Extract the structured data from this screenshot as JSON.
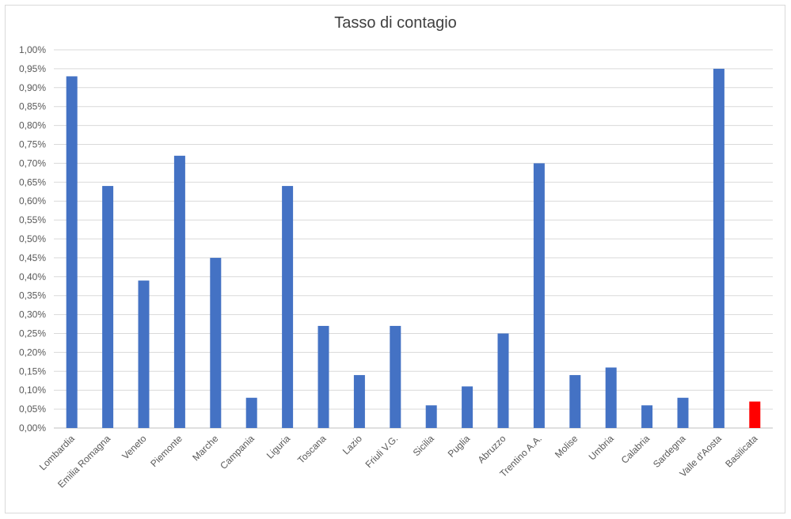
{
  "chart_data": {
    "type": "bar",
    "title": "Tasso di contagio",
    "xlabel": "",
    "ylabel": "",
    "ylim": [
      0,
      1.0
    ],
    "y_tick_step": 0.05,
    "y_tick_format": "percent_comma_2dp",
    "grid": true,
    "legend": "none",
    "categories": [
      "Lombardia",
      "Emilia Romagna",
      "Veneto",
      "Piemonte",
      "Marche",
      "Campania",
      "Liguria",
      "Toscana",
      "Lazio",
      "Friuli V.G.",
      "Sicilia",
      "Puglia",
      "Abruzzo",
      "Trentino A.A.",
      "Molise",
      "Umbria",
      "Calabria",
      "Sardegna",
      "Valle d'Aosta",
      "Basilicata"
    ],
    "values": [
      0.93,
      0.64,
      0.39,
      0.72,
      0.45,
      0.08,
      0.64,
      0.27,
      0.14,
      0.27,
      0.06,
      0.11,
      0.25,
      0.7,
      0.14,
      0.16,
      0.06,
      0.08,
      0.95,
      0.07
    ],
    "colors": {
      "default": "#4472c4",
      "highlight": "#ff0000",
      "highlight_category": "Basilicata",
      "grid": "#d9d9d9",
      "axis": "#bfbfbf"
    }
  }
}
